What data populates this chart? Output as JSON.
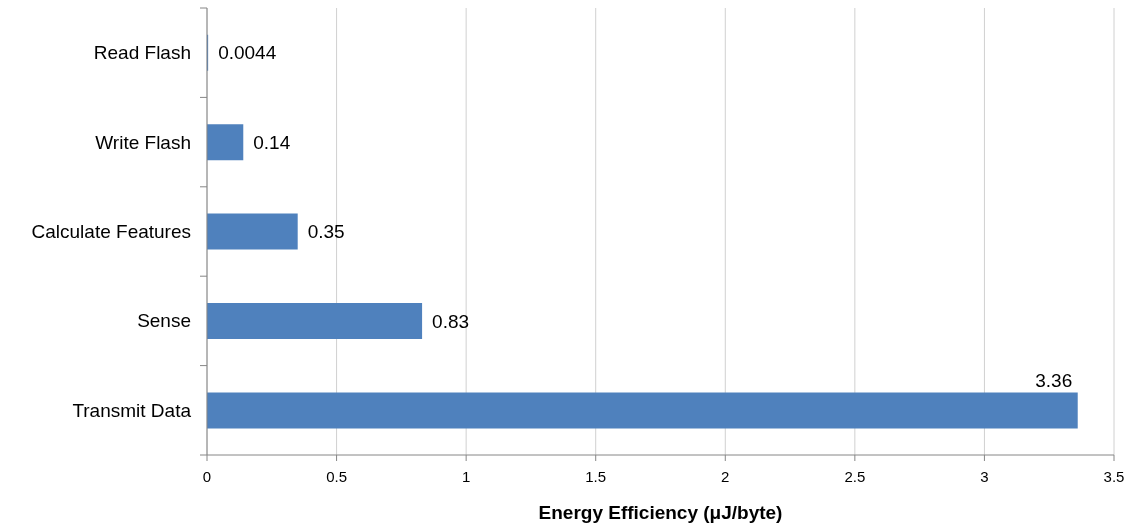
{
  "chart_data": {
    "type": "bar",
    "orientation": "horizontal",
    "categories": [
      "Read Flash",
      "Write Flash",
      "Calculate Features",
      "Sense",
      "Transmit Data"
    ],
    "values": [
      0.0044,
      0.14,
      0.35,
      0.83,
      3.36
    ],
    "color": "#4f81bd",
    "xlabel": "Energy Efficiency (μJ/byte)",
    "xlim": [
      0,
      3.5
    ],
    "xticks": [
      0,
      0.5,
      1,
      1.5,
      2,
      2.5,
      3,
      3.5
    ],
    "grid": "x",
    "data_labels": true
  }
}
